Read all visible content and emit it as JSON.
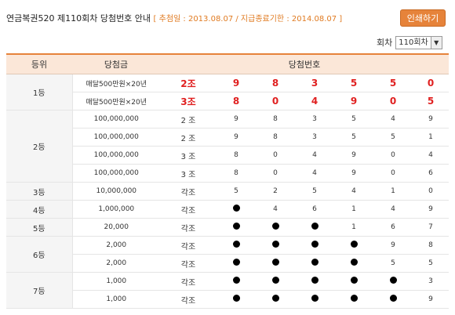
{
  "header": {
    "title": "연금복권520 제110회차 당첨번호 안내",
    "dates": "[ 추첨일 : 2013.08.07 / 지급종료기한 : 2014.08.07 ]",
    "print_label": "인쇄하기"
  },
  "round_select": {
    "label": "회차",
    "value": "110회차"
  },
  "table": {
    "columns": {
      "rank": "등위",
      "prize": "당첨금",
      "numbers": "당첨번호"
    },
    "rows": [
      {
        "rank": "1등",
        "prize": "매달500만원×20년",
        "group": "2조",
        "digits": [
          "9",
          "8",
          "3",
          "5",
          "5",
          "0"
        ],
        "highlight": true
      },
      {
        "rank": "",
        "prize": "매달500만원×20년",
        "group": "3조",
        "digits": [
          "8",
          "0",
          "4",
          "9",
          "0",
          "5"
        ],
        "highlight": true
      },
      {
        "rank": "2등",
        "prize": "100,000,000",
        "group": "2 조",
        "digits": [
          "9",
          "8",
          "3",
          "5",
          "4",
          "9"
        ]
      },
      {
        "rank": "",
        "prize": "100,000,000",
        "group": "2 조",
        "digits": [
          "9",
          "8",
          "3",
          "5",
          "5",
          "1"
        ]
      },
      {
        "rank": "",
        "prize": "100,000,000",
        "group": "3 조",
        "digits": [
          "8",
          "0",
          "4",
          "9",
          "0",
          "4"
        ]
      },
      {
        "rank": "",
        "prize": "100,000,000",
        "group": "3 조",
        "digits": [
          "8",
          "0",
          "4",
          "9",
          "0",
          "6"
        ]
      },
      {
        "rank": "3등",
        "prize": "10,000,000",
        "group": "각조",
        "digits": [
          "5",
          "2",
          "5",
          "4",
          "1",
          "0"
        ]
      },
      {
        "rank": "4등",
        "prize": "1,000,000",
        "group": "각조",
        "digits": [
          "●",
          "4",
          "6",
          "1",
          "4",
          "9"
        ]
      },
      {
        "rank": "5등",
        "prize": "20,000",
        "group": "각조",
        "digits": [
          "●",
          "●",
          "●",
          "1",
          "6",
          "7"
        ]
      },
      {
        "rank": "6등",
        "prize": "2,000",
        "group": "각조",
        "digits": [
          "●",
          "●",
          "●",
          "●",
          "9",
          "8"
        ]
      },
      {
        "rank": "",
        "prize": "2,000",
        "group": "각조",
        "digits": [
          "●",
          "●",
          "●",
          "●",
          "5",
          "5"
        ]
      },
      {
        "rank": "7등",
        "prize": "1,000",
        "group": "각조",
        "digits": [
          "●",
          "●",
          "●",
          "●",
          "●",
          "3"
        ]
      },
      {
        "rank": "",
        "prize": "1,000",
        "group": "각조",
        "digits": [
          "●",
          "●",
          "●",
          "●",
          "●",
          "9"
        ]
      }
    ]
  }
}
